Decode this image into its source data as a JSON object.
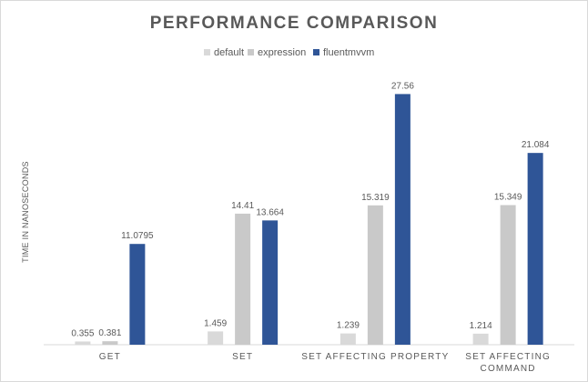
{
  "chart_data": {
    "type": "bar",
    "title": "PERFORMANCE COMPARISON",
    "ylabel": "TIME IN NANOSECONDS",
    "xlabel": "",
    "categories": [
      [
        "GET"
      ],
      [
        "SET"
      ],
      [
        "SET AFFECTING PROPERTY"
      ],
      [
        "SET AFFECTING",
        "COMMAND"
      ]
    ],
    "series": [
      {
        "name": "default",
        "color": "#d9d9d9",
        "values": [
          0.355,
          1.459,
          1.239,
          1.214
        ],
        "labels": [
          "0.355",
          "1.459",
          "1.239",
          "1.214"
        ]
      },
      {
        "name": "expression",
        "color": "#c9c9c9",
        "values": [
          0.381,
          14.41,
          15.319,
          15.349
        ],
        "labels": [
          "0.381",
          "14.41",
          "15.319",
          "15.349"
        ]
      },
      {
        "name": "fluentmvvm",
        "color": "#2f5597",
        "values": [
          11.0795,
          13.664,
          27.56,
          21.084
        ],
        "labels": [
          "11.0795",
          "13.664",
          "27.56",
          "21.084"
        ]
      }
    ],
    "ylim": [
      0,
      30
    ],
    "grid": false,
    "legend": "top-center"
  }
}
